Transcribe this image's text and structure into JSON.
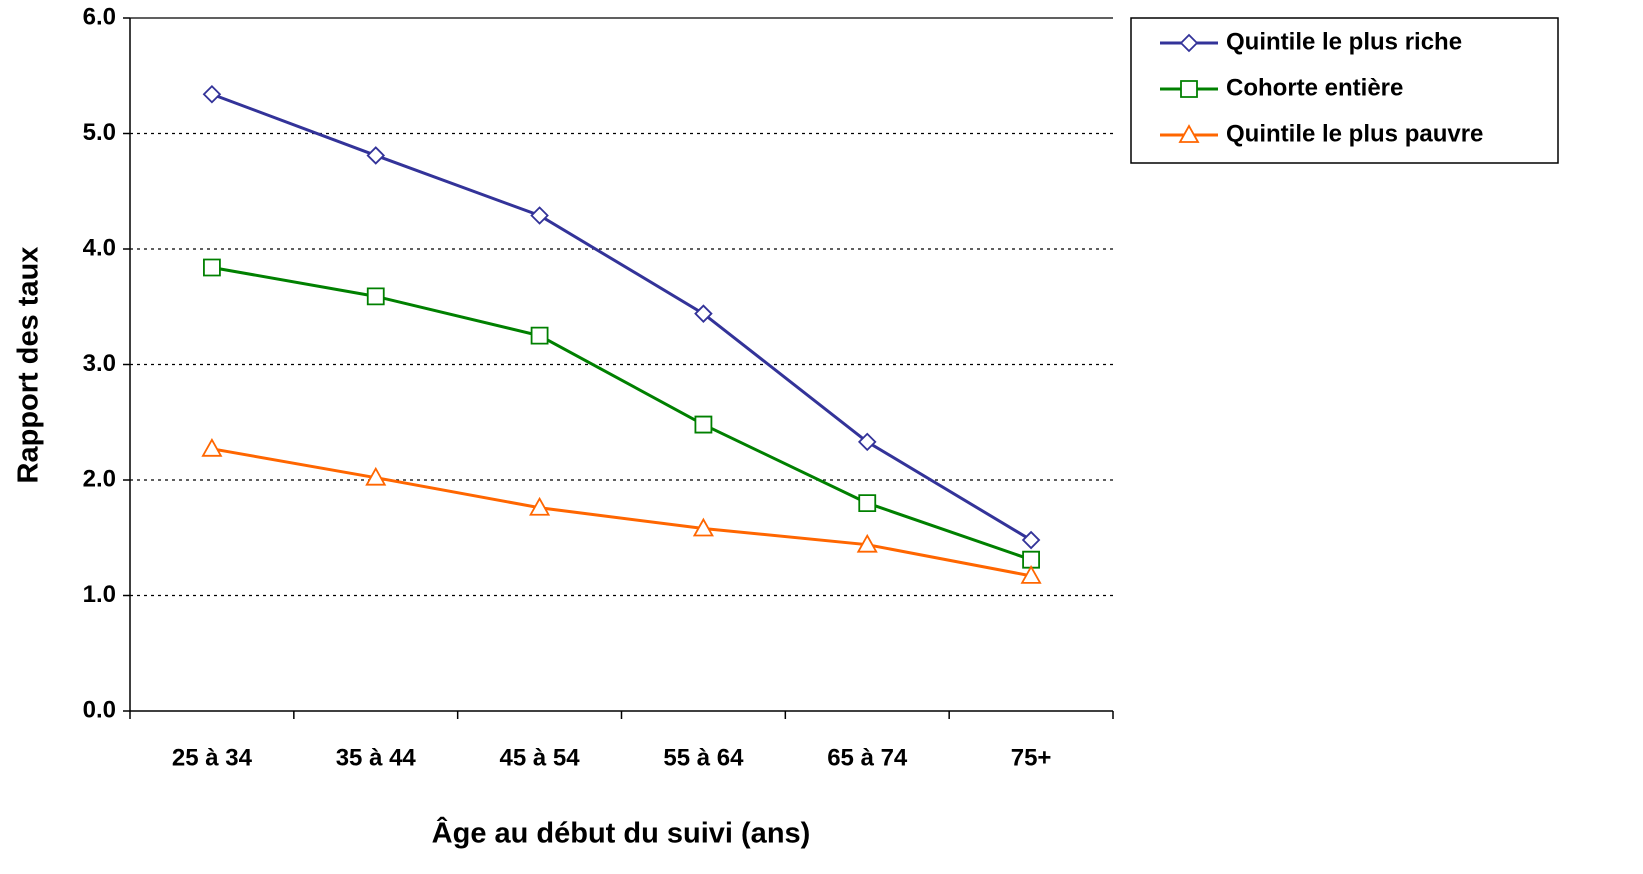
{
  "chart_data": {
    "type": "line",
    "x_label": "Âge au début du suivi (ans)",
    "y_label": "Rapport des taux",
    "categories": [
      "25 à 34",
      "35 à 44",
      "45 à 54",
      "55 à 64",
      "65 à 74",
      "75+"
    ],
    "series": [
      {
        "name": "Quintile le plus riche",
        "color": "#333399",
        "marker": "diamond",
        "values": [
          5.34,
          4.81,
          4.29,
          3.44,
          2.33,
          1.48
        ]
      },
      {
        "name": "Cohorte entière",
        "color": "#008000",
        "marker": "square",
        "values": [
          3.84,
          3.59,
          3.25,
          2.48,
          1.8,
          1.31
        ]
      },
      {
        "name": "Quintile le plus pauvre",
        "color": "#ff6600",
        "marker": "triangle",
        "values": [
          2.27,
          2.02,
          1.76,
          1.58,
          1.44,
          1.17
        ]
      }
    ],
    "ylim": [
      0,
      6
    ],
    "yticks": [
      {
        "value": 0,
        "label": "0.0"
      },
      {
        "value": 1,
        "label": "1.0"
      },
      {
        "value": 2,
        "label": "2.0"
      },
      {
        "value": 3,
        "label": "3.0"
      },
      {
        "value": 4,
        "label": "4.0"
      },
      {
        "value": 5,
        "label": "5.0"
      },
      {
        "value": 6,
        "label": "6.0"
      }
    ],
    "grid": true,
    "legend": "top-right"
  }
}
